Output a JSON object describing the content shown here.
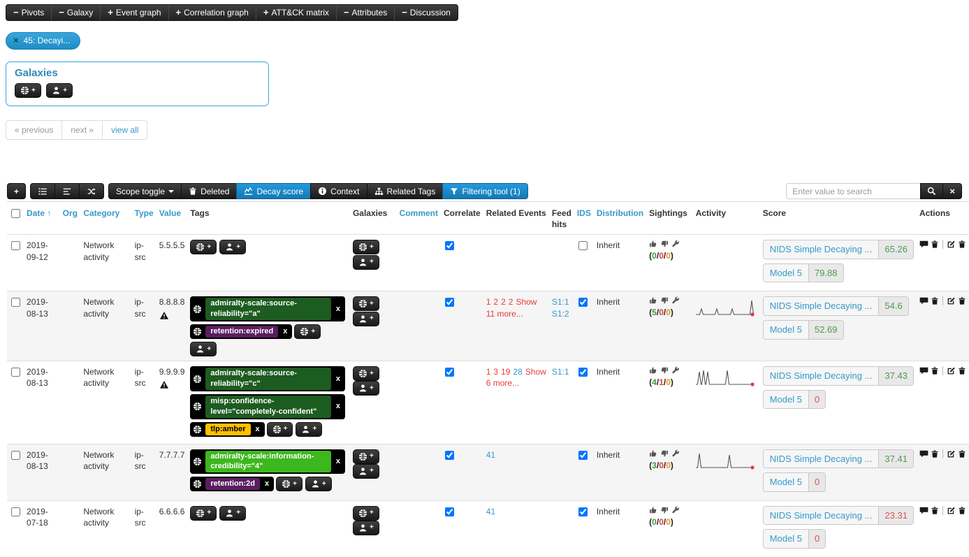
{
  "colors": {
    "accent_blue": "#1f8fd1",
    "link_blue": "#3599cc",
    "red": "#e23b3b",
    "green": "#4e9b4e",
    "orange": "#f0941e",
    "tag_dark_green": "#1d5c20",
    "tag_purple": "#5a1d61",
    "tag_bright_green": "#3cb71d",
    "tag_amber": "#ffc000"
  },
  "icons": {
    "minus-op": "−",
    "plus-op": "+",
    "close": "×",
    "sort-asc": "↑",
    "globe": "globe-glyph",
    "person": "person-glyph",
    "trash": "trash-glyph",
    "chart": "line-chart-glyph",
    "info": "info-circle-glyph",
    "sitemap": "sitemap-glyph",
    "filter": "funnel-glyph",
    "search": "magnifier-glyph",
    "thumb-up": "thumb-up-glyph",
    "thumb-down": "thumb-down-glyph",
    "wrench": "wrench-glyph",
    "comment": "speech-bubble-glyph",
    "edit": "pencil-square-glyph",
    "warning": "warning-triangle-glyph"
  },
  "tab_bar": {
    "items": [
      {
        "op": "minus",
        "label": "Pivots"
      },
      {
        "op": "minus",
        "label": "Galaxy"
      },
      {
        "op": "plus",
        "label": "Event graph"
      },
      {
        "op": "plus",
        "label": "Correlation graph"
      },
      {
        "op": "plus",
        "label": "ATT&CK matrix"
      },
      {
        "op": "minus",
        "label": "Attributes"
      },
      {
        "op": "minus",
        "label": "Discussion"
      }
    ]
  },
  "filter_pill": {
    "label": "45: Decayi..."
  },
  "galaxies_panel": {
    "title": "Galaxies"
  },
  "pagination": {
    "previous": "« previous",
    "next": "next »",
    "view_all": "view all"
  },
  "toolbar": {
    "add": "+",
    "scope_toggle": "Scope toggle",
    "deleted": "Deleted",
    "decay_score": "Decay score",
    "context": "Context",
    "related_tags": "Related Tags",
    "filtering_tool": "Filtering tool (1)"
  },
  "search": {
    "placeholder": "Enter value to search"
  },
  "table": {
    "headers": [
      {
        "label": "Date",
        "link": true,
        "sort": "↑",
        "cls": "c-date"
      },
      {
        "label": "Org",
        "link": true,
        "cls": "c-org"
      },
      {
        "label": "Category",
        "link": true,
        "cls": "c-cat"
      },
      {
        "label": "Type",
        "link": true,
        "cls": "c-type"
      },
      {
        "label": "Value",
        "link": true,
        "cls": "c-val"
      },
      {
        "label": "Tags",
        "link": false,
        "cls": "c-tags"
      },
      {
        "label": "Galaxies",
        "link": false,
        "cls": "c-gal"
      },
      {
        "label": "Comment",
        "link": true,
        "cls": "c-com"
      },
      {
        "label": "Correlate",
        "link": false,
        "cls": "c-cor"
      },
      {
        "label": "Related Events",
        "link": false,
        "cls": "c-rel"
      },
      {
        "label": "Feed hits",
        "link": false,
        "cls": "c-feed"
      },
      {
        "label": "IDS",
        "link": true,
        "cls": "c-ids"
      },
      {
        "label": "Distribution",
        "link": true,
        "cls": "c-dist"
      },
      {
        "label": "Sightings",
        "link": false,
        "cls": "c-sig"
      },
      {
        "label": "Activity",
        "link": false,
        "cls": "c-act"
      },
      {
        "label": "Score",
        "link": false,
        "cls": "c-score"
      },
      {
        "label": "Actions",
        "link": false,
        "cls": "c-actions"
      }
    ],
    "rows": [
      {
        "date": "2019-09-12",
        "org": "",
        "category": "Network activity",
        "type": "ip-src",
        "value": "5.5.5.5",
        "warning": false,
        "tags": [],
        "correlate": true,
        "related_events": [],
        "related_more": "",
        "feed_hits": [],
        "ids": false,
        "distribution": "Inherit",
        "sightings": {
          "up": 0,
          "down": 0,
          "expired": 0
        },
        "activity": {
          "spikes": []
        },
        "scores": [
          {
            "model": "NIDS Simple Decaying ...",
            "value": "65.26",
            "status": "ok"
          },
          {
            "model": "Model 5",
            "value": "79.88",
            "status": "ok"
          }
        ]
      },
      {
        "date": "2019-08-13",
        "org": "",
        "category": "Network activity",
        "type": "ip-src",
        "value": "8.8.8.8",
        "warning": true,
        "tags": [
          {
            "label": "admiralty-scale:source-reliability=\"a\"",
            "bg": "#1d5c20",
            "fg": "#ffffff"
          },
          {
            "label": "retention:expired",
            "bg": "#5a1d61",
            "fg": "#ffffff"
          }
        ],
        "correlate": true,
        "related_events": [
          {
            "label": "1",
            "style": "red"
          },
          {
            "label": "2",
            "style": "red"
          },
          {
            "label": "2",
            "style": "red"
          },
          {
            "label": "2",
            "style": "red"
          }
        ],
        "related_more": "Show 11 more...",
        "feed_hits": [
          "S1:1",
          "S1:2"
        ],
        "ids": true,
        "distribution": "Inherit",
        "sightings": {
          "up": 5,
          "down": 0,
          "expired": 0
        },
        "activity": {
          "spikes": [
            [
              8,
              8
            ],
            [
              30,
              8
            ],
            [
              52,
              8
            ],
            [
              80,
              20
            ]
          ]
        },
        "scores": [
          {
            "model": "NIDS Simple Decaying ...",
            "value": "54.6",
            "status": "ok"
          },
          {
            "model": "Model 5",
            "value": "52.69",
            "status": "ok"
          }
        ]
      },
      {
        "date": "2019-08-13",
        "org": "",
        "category": "Network activity",
        "type": "ip-src",
        "value": "9.9.9.9",
        "warning": true,
        "tags": [
          {
            "label": "admiralty-scale:source-reliability=\"c\"",
            "bg": "#1d5c20",
            "fg": "#ffffff"
          },
          {
            "label": "misp:confidence-level=\"completely-confident\"",
            "bg": "#1d5c20",
            "fg": "#ffffff"
          },
          {
            "label": "tlp:amber",
            "bg": "#ffc000",
            "fg": "#000000"
          }
        ],
        "correlate": true,
        "related_events": [
          {
            "label": "1",
            "style": "red"
          },
          {
            "label": "3",
            "style": "red"
          },
          {
            "label": "19",
            "style": "red"
          },
          {
            "label": "28",
            "style": "blue"
          }
        ],
        "related_more": "Show 6 more...",
        "feed_hits": [
          "S1:1"
        ],
        "ids": true,
        "distribution": "Inherit",
        "sightings": {
          "up": 4,
          "down": 1,
          "expired": 0
        },
        "activity": {
          "spikes": [
            [
              5,
              18
            ],
            [
              11,
              20
            ],
            [
              17,
              18
            ],
            [
              45,
              20
            ]
          ]
        },
        "scores": [
          {
            "model": "NIDS Simple Decaying ...",
            "value": "37.43",
            "status": "ok"
          },
          {
            "model": "Model 5",
            "value": "0",
            "status": "bad"
          }
        ]
      },
      {
        "date": "2019-08-13",
        "org": "",
        "category": "Network activity",
        "type": "ip-src",
        "value": "7.7.7.7",
        "warning": false,
        "tags": [
          {
            "label": "admiralty-scale:information-credibility=\"4\"",
            "bg": "#3cb71d",
            "fg": "#ffffff"
          },
          {
            "label": "retention:2d",
            "bg": "#5a1d61",
            "fg": "#ffffff"
          }
        ],
        "correlate": true,
        "related_events": [
          {
            "label": "41",
            "style": "blue"
          }
        ],
        "related_more": "",
        "feed_hits": [],
        "ids": true,
        "distribution": "Inherit",
        "sightings": {
          "up": 3,
          "down": 0,
          "expired": 0
        },
        "activity": {
          "spikes": [
            [
              5,
              20
            ],
            [
              48,
              18
            ]
          ]
        },
        "scores": [
          {
            "model": "NIDS Simple Decaying ...",
            "value": "37.41",
            "status": "ok"
          },
          {
            "model": "Model 5",
            "value": "0",
            "status": "bad"
          }
        ]
      },
      {
        "date": "2019-07-18",
        "org": "",
        "category": "Network activity",
        "type": "ip-src",
        "value": "6.6.6.6",
        "warning": false,
        "tags": [],
        "correlate": true,
        "related_events": [
          {
            "label": "41",
            "style": "blue"
          }
        ],
        "related_more": "",
        "feed_hits": [],
        "ids": true,
        "distribution": "Inherit",
        "sightings": {
          "up": 0,
          "down": 0,
          "expired": 0
        },
        "activity": {
          "spikes": []
        },
        "scores": [
          {
            "model": "NIDS Simple Decaying ...",
            "value": "23.31",
            "status": "bad"
          },
          {
            "model": "Model 5",
            "value": "0",
            "status": "bad"
          }
        ]
      }
    ]
  }
}
